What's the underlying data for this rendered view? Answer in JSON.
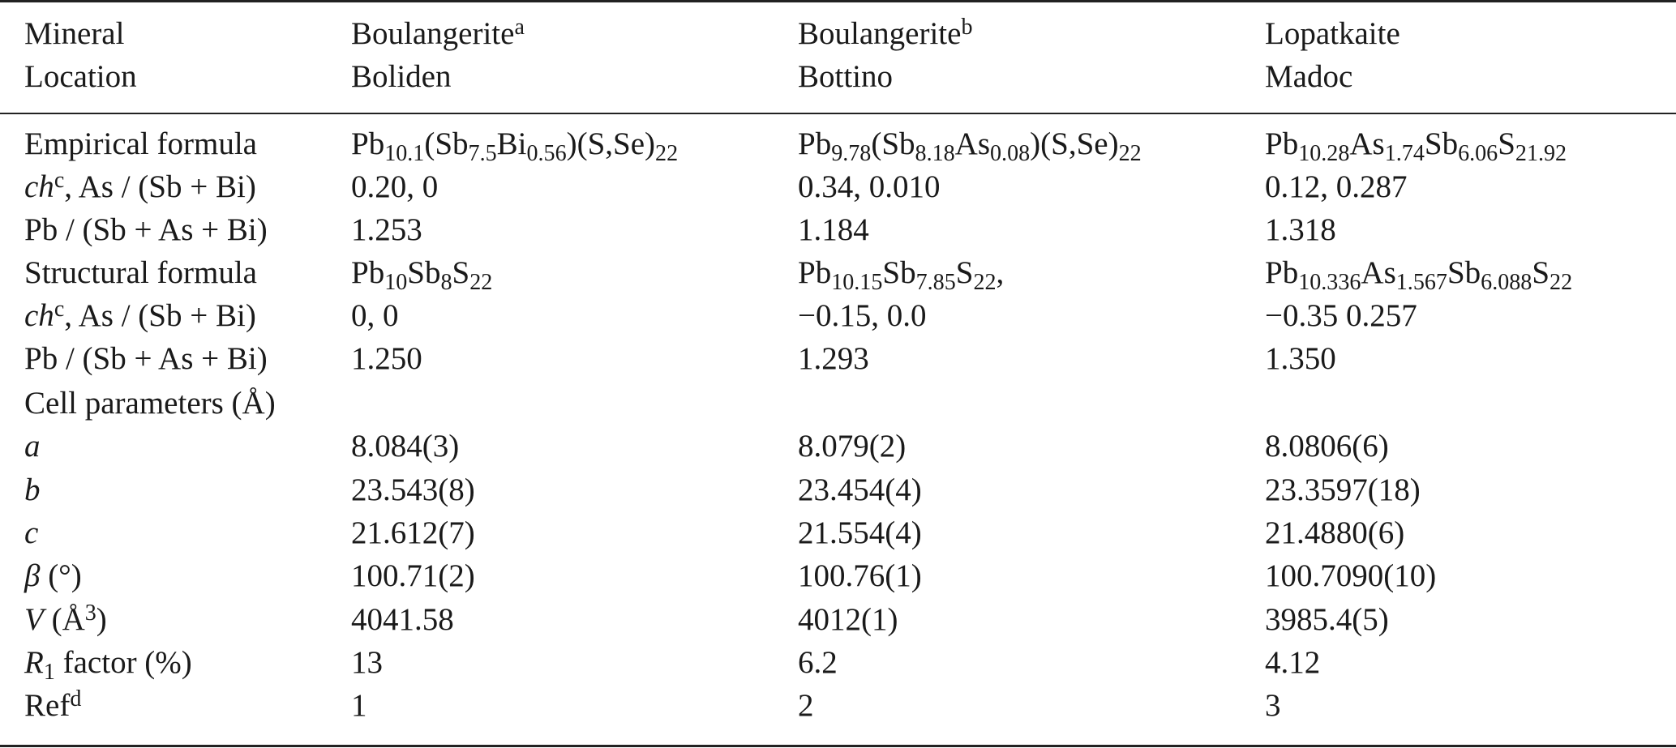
{
  "header": {
    "row1": [
      "Mineral",
      "Boulangerite",
      "Boulangerite",
      "Lopatkaite"
    ],
    "row1_sup": [
      "",
      "a",
      "b",
      ""
    ],
    "row2": [
      "Location",
      "Boliden",
      "Bottino",
      "Madoc"
    ]
  },
  "rows": {
    "empirical": {
      "label": "Empirical formula",
      "v1": [
        [
          "t",
          "Pb"
        ],
        [
          "s",
          "10.1"
        ],
        [
          "t",
          "(Sb"
        ],
        [
          "s",
          "7.5"
        ],
        [
          "t",
          "Bi"
        ],
        [
          "s",
          "0.56"
        ],
        [
          "t",
          ")(S,Se)"
        ],
        [
          "s",
          "22"
        ]
      ],
      "v2": [
        [
          "t",
          "Pb"
        ],
        [
          "s",
          "9.78"
        ],
        [
          "t",
          "(Sb"
        ],
        [
          "s",
          "8.18"
        ],
        [
          "t",
          "As"
        ],
        [
          "s",
          "0.08"
        ],
        [
          "t",
          ")(S,Se)"
        ],
        [
          "s",
          "22"
        ]
      ],
      "v3": [
        [
          "t",
          "Pb"
        ],
        [
          "s",
          "10.28"
        ],
        [
          "t",
          "As"
        ],
        [
          "s",
          "1.74"
        ],
        [
          "t",
          "Sb"
        ],
        [
          "s",
          "6.06"
        ],
        [
          "t",
          "S"
        ],
        [
          "s",
          "21.92"
        ]
      ]
    },
    "ch1": {
      "label_italic": "ch",
      "label_sup": "c",
      "label_rest": ", As / (Sb + Bi)",
      "v1": "0.20, 0",
      "v2": "0.34, 0.010",
      "v3": "0.12, 0.287"
    },
    "ratio1": {
      "label": "Pb / (Sb + As + Bi)",
      "v1": "1.253",
      "v2": "1.184",
      "v3": "1.318"
    },
    "structural": {
      "label": "Structural formula",
      "v1": [
        [
          "t",
          "Pb"
        ],
        [
          "s",
          "10"
        ],
        [
          "t",
          "Sb"
        ],
        [
          "s",
          "8"
        ],
        [
          "t",
          "S"
        ],
        [
          "s",
          "22"
        ]
      ],
      "v2": [
        [
          "t",
          "Pb"
        ],
        [
          "s",
          "10.15"
        ],
        [
          "t",
          "Sb"
        ],
        [
          "s",
          "7.85"
        ],
        [
          "t",
          "S"
        ],
        [
          "s",
          "22"
        ],
        [
          "t",
          ","
        ]
      ],
      "v3": [
        [
          "t",
          "Pb"
        ],
        [
          "s",
          "10.336"
        ],
        [
          "t",
          "As"
        ],
        [
          "s",
          "1.567"
        ],
        [
          "t",
          "Sb"
        ],
        [
          "s",
          "6.088"
        ],
        [
          "t",
          "S"
        ],
        [
          "s",
          "22"
        ]
      ]
    },
    "ch2": {
      "label_italic": "ch",
      "label_sup": "c",
      "label_rest": ", As / (Sb + Bi)",
      "v1": "0, 0",
      "v2": "−0.15, 0.0",
      "v3": "−0.35 0.257"
    },
    "ratio2": {
      "label": "Pb / (Sb + As + Bi)",
      "v1": "1.250",
      "v2": "1.293",
      "v3": "1.350"
    },
    "cell": {
      "label": "Cell parameters (Å)"
    },
    "a": {
      "label": "a",
      "v1": "8.084(3)",
      "v2": "8.079(2)",
      "v3": "8.0806(6)"
    },
    "b": {
      "label": "b",
      "v1": "23.543(8)",
      "v2": "23.454(4)",
      "v3": "23.3597(18)"
    },
    "c": {
      "label": "c",
      "v1": "21.612(7)",
      "v2": "21.554(4)",
      "v3": "21.4880(6)"
    },
    "beta": {
      "label_italic": "β",
      "label_rest": " (°)",
      "v1": "100.71(2)",
      "v2": "100.76(1)",
      "v3": "100.7090(10)"
    },
    "vol": {
      "label_italic": "V",
      "label_rest": " (Å",
      "label_sup": "3",
      "label_end": ")",
      "v1": "4041.58",
      "v2": "4012(1)",
      "v3": "3985.4(5)"
    },
    "r1": {
      "label_italic": "R",
      "label_sub": "1",
      "label_rest": " factor (%)",
      "v1": "13",
      "v2": "6.2",
      "v3": "4.12"
    },
    "ref": {
      "label": "Ref",
      "label_sup": "d",
      "v1": "1",
      "v2": "2",
      "v3": "3"
    }
  }
}
